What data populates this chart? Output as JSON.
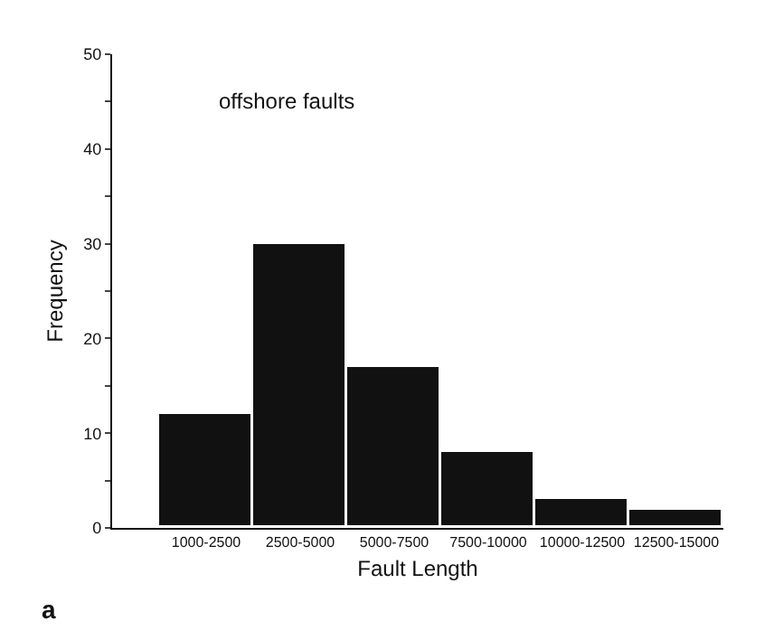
{
  "chart_data": {
    "type": "bar",
    "xlabel": "Fault Length",
    "ylabel": "Frequency",
    "categories": [
      "1000-2500",
      "2500-5000",
      "5000-7500",
      "7500-10000",
      "10000-12500",
      "12500-15000"
    ],
    "values": [
      12,
      30,
      17,
      8,
      3,
      2
    ],
    "color": "#111111",
    "ylim": [
      0,
      50
    ],
    "yticks": [
      0,
      {
        "value": 5,
        "label": null
      },
      10,
      {
        "value": 15,
        "label": null
      },
      20,
      {
        "value": 25,
        "label": null
      },
      30,
      {
        "value": 35,
        "label": null
      },
      40,
      {
        "value": 45,
        "label": null
      },
      50
    ],
    "annotations": [
      "offshore faults",
      "a"
    ]
  }
}
